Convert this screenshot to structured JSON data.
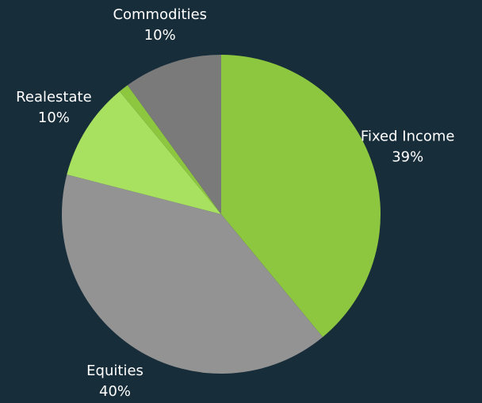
{
  "chart_data": {
    "type": "pie",
    "categories": [
      "Fixed Income",
      "Equities",
      "Realestate",
      null,
      "Commodities"
    ],
    "values": [
      39,
      40,
      10,
      1,
      10
    ],
    "value_labels": [
      "39%",
      "40%",
      "10%",
      null,
      "10%"
    ],
    "colors": [
      "#8dc63f",
      "#939393",
      "#a8e05f",
      "#8dc63f",
      "#7a7a7a"
    ]
  }
}
